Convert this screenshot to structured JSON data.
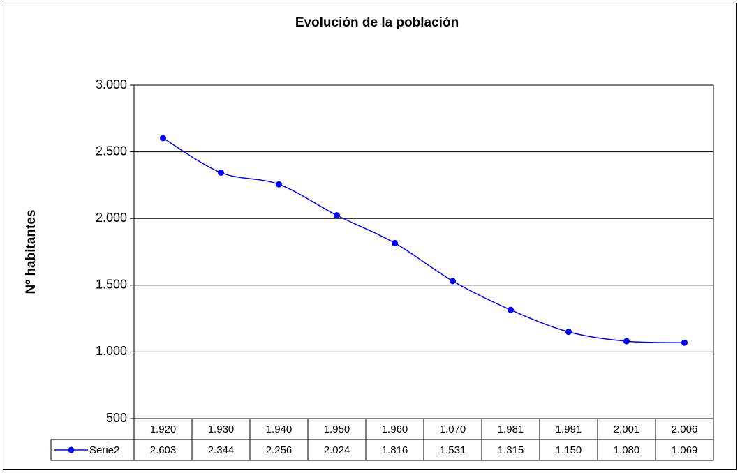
{
  "chart_data": {
    "type": "line",
    "title": "Evolución de la población",
    "y_label": "Nº habitantes",
    "categories": [
      "1.920",
      "1.930",
      "1.940",
      "1.950",
      "1.960",
      "1.070",
      "1.981",
      "1.991",
      "2.001",
      "2.006"
    ],
    "series": [
      {
        "name": "Serie2",
        "color": "#0000ff",
        "values": [
          2603,
          2344,
          2256,
          2024,
          1816,
          1531,
          1315,
          1150,
          1080,
          1069
        ],
        "value_labels": [
          "2.603",
          "2.344",
          "2.256",
          "2.024",
          "1.816",
          "1.531",
          "1.315",
          "1.150",
          "1.080",
          "1.069"
        ]
      }
    ],
    "ylim": [
      500,
      3000
    ],
    "yticks": [
      {
        "value": 500,
        "label": "500"
      },
      {
        "value": 1000,
        "label": "1.000"
      },
      {
        "value": 1500,
        "label": "1.500"
      },
      {
        "value": 2000,
        "label": "2.000"
      },
      {
        "value": 2500,
        "label": "2.500"
      },
      {
        "value": 3000,
        "label": "3.000"
      }
    ],
    "grid": true,
    "data_table": true
  }
}
